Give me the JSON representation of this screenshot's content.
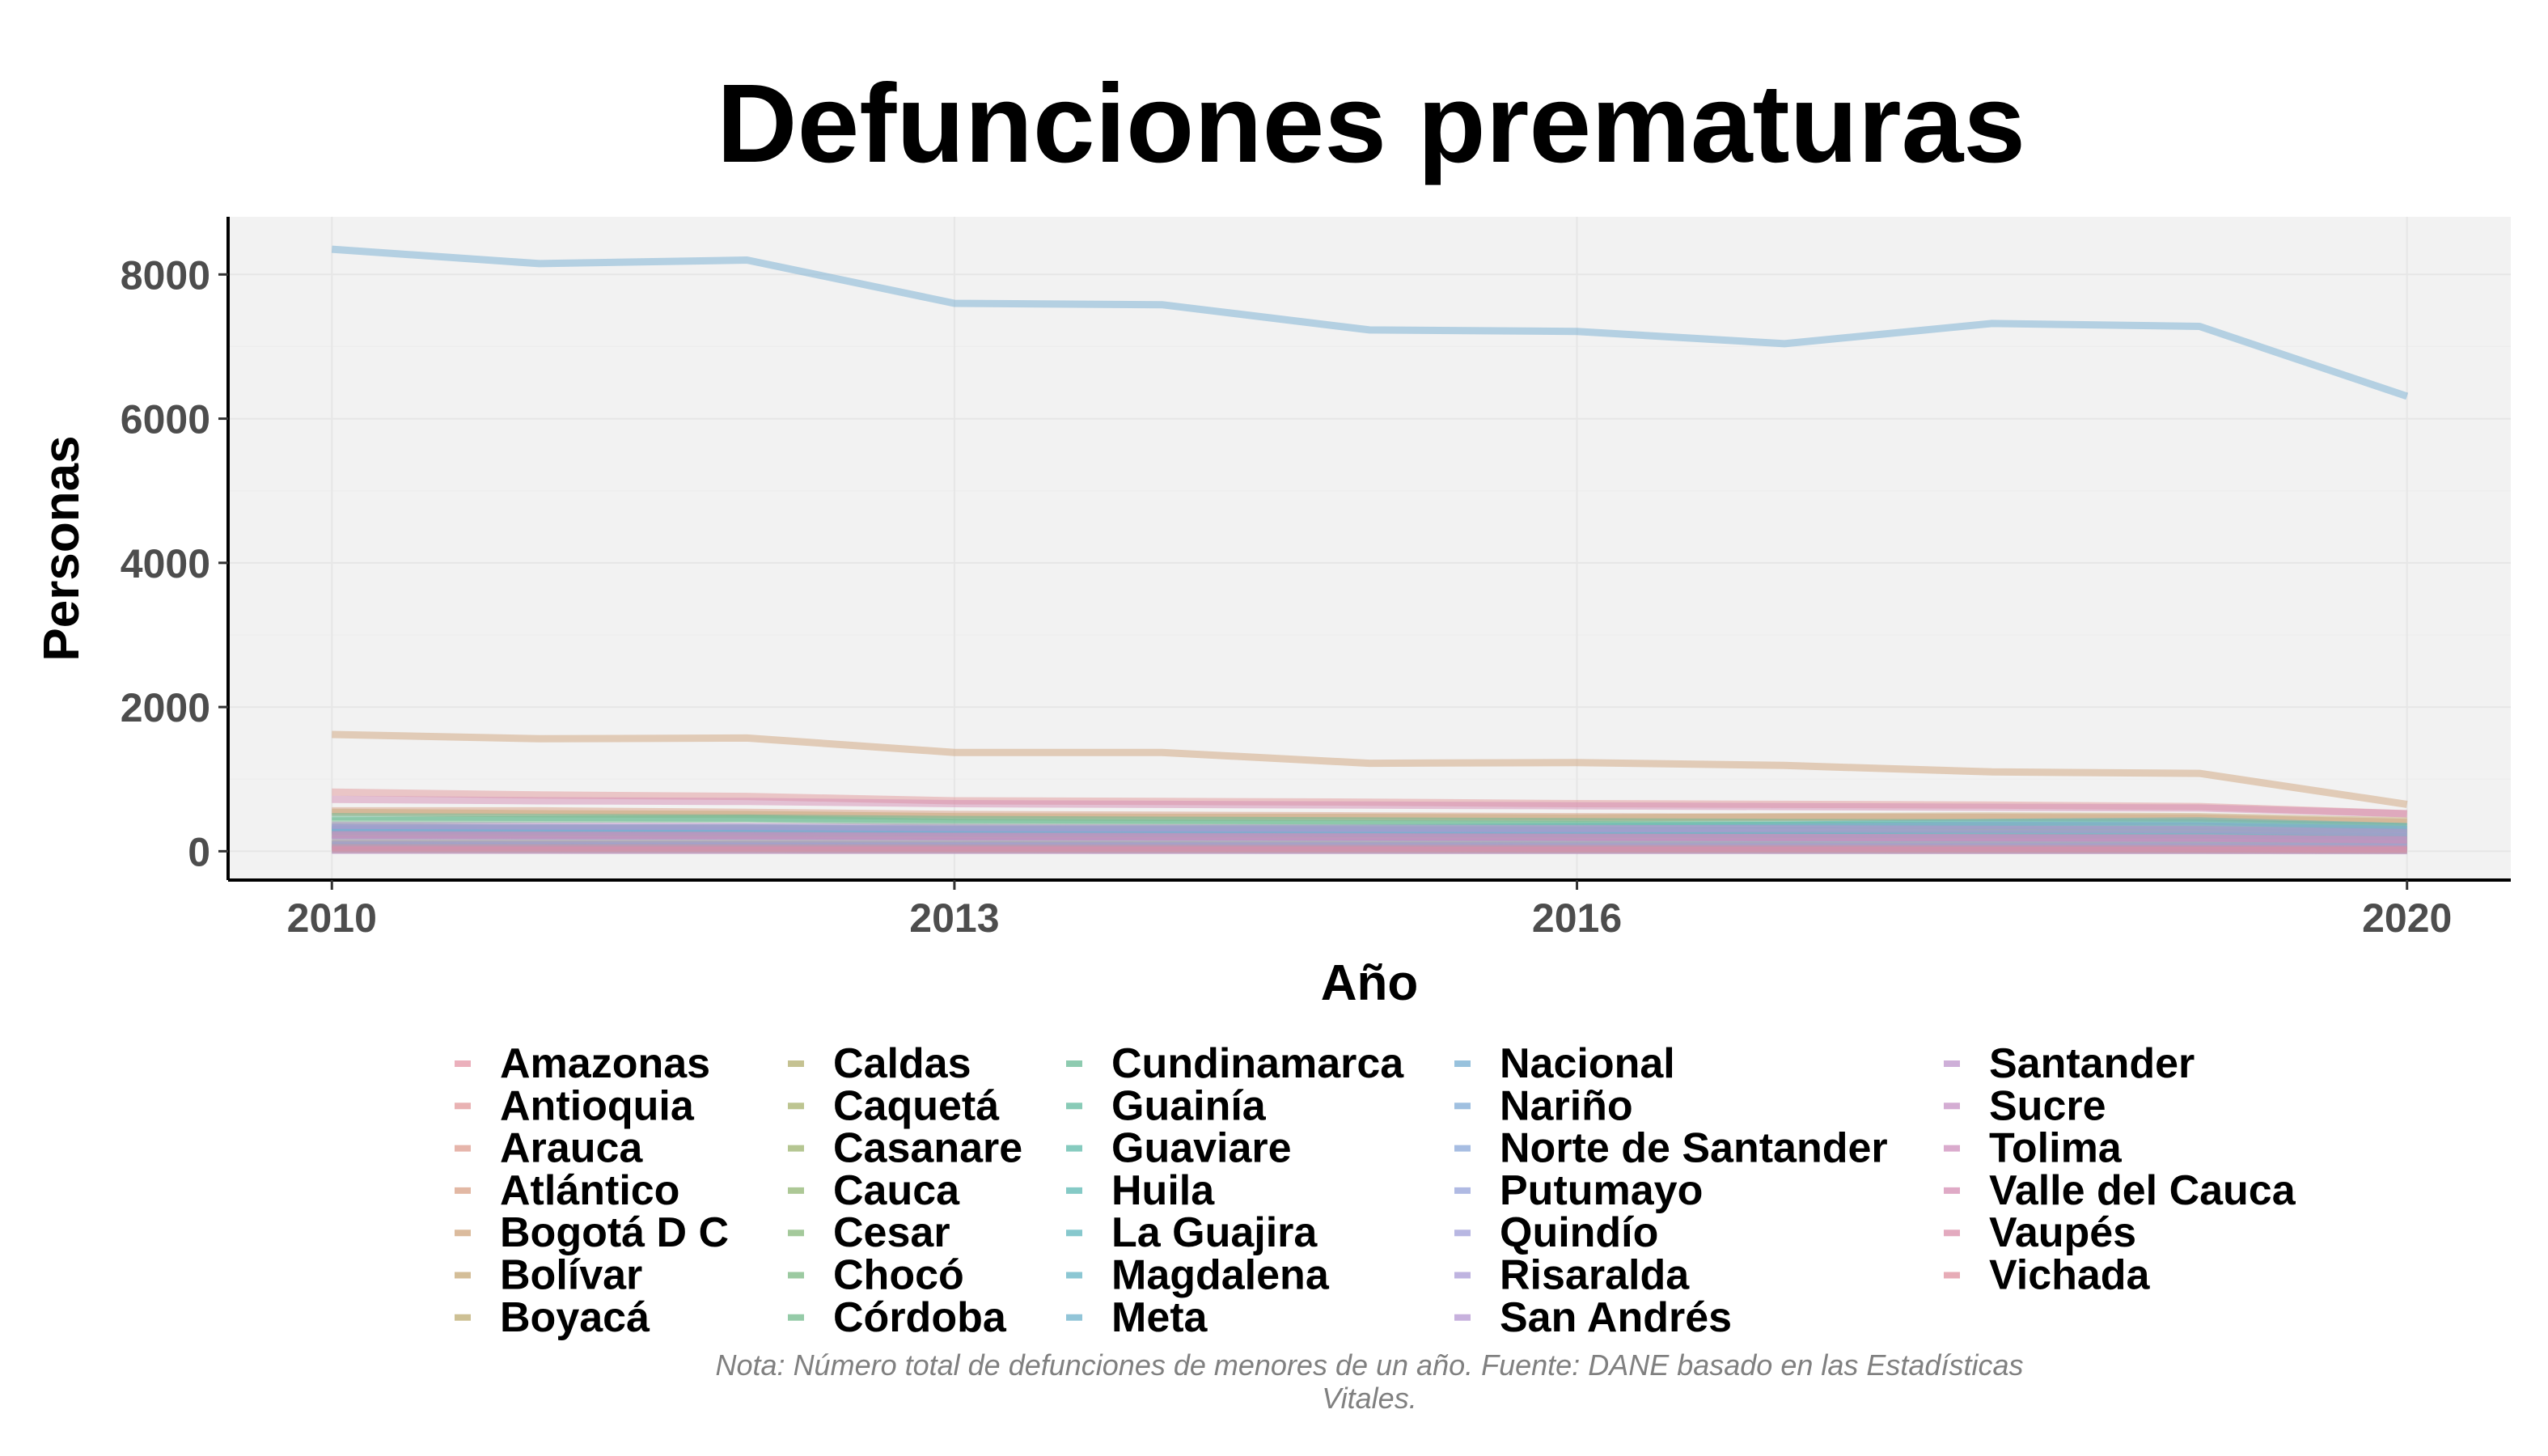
{
  "chart_data": {
    "type": "line",
    "title": "Defunciones prematuras",
    "xlabel": "Año",
    "ylabel": "Personas",
    "caption_lines": [
      "Nota: Número total de defunciones de menores de un año. Fuente: DANE basado en las Estadísticas",
      "Vitales."
    ],
    "x": [
      2010,
      2011,
      2012,
      2013,
      2014,
      2015,
      2016,
      2017,
      2018,
      2019,
      2020
    ],
    "x_ticks": [
      2010,
      2013,
      2016,
      2020
    ],
    "x_tick_labels": [
      "2010",
      "2013",
      "2016",
      "2020"
    ],
    "y_ticks": [
      0,
      2000,
      4000,
      6000,
      8000
    ],
    "y_tick_labels": [
      "0",
      "2000",
      "4000",
      "6000",
      "8000"
    ],
    "xlim": [
      2009.5,
      2020.5
    ],
    "ylim": [
      -400,
      8800
    ],
    "grid": true,
    "panel_background": "#f2f2f2",
    "legend_position": "bottom",
    "line_opacity": 0.5,
    "series": [
      {
        "name": "Amazonas",
        "color": "#e495a5",
        "values": [
          60,
          55,
          58,
          50,
          52,
          48,
          50,
          45,
          44,
          42,
          35
        ]
      },
      {
        "name": "Antioquia",
        "color": "#e1989a",
        "values": [
          820,
          780,
          760,
          700,
          690,
          680,
          660,
          650,
          640,
          620,
          520
        ]
      },
      {
        "name": "Arauca",
        "color": "#dd9c8f",
        "values": [
          70,
          68,
          66,
          60,
          58,
          56,
          54,
          55,
          56,
          52,
          45
        ]
      },
      {
        "name": "Atlántico",
        "color": "#d8a085",
        "values": [
          560,
          560,
          540,
          510,
          500,
          490,
          480,
          470,
          470,
          460,
          400
        ]
      },
      {
        "name": "Bogotá D C",
        "color": "#cfa47c",
        "values": [
          1620,
          1560,
          1570,
          1370,
          1370,
          1220,
          1230,
          1190,
          1100,
          1080,
          650
        ]
      },
      {
        "name": "Bolívar",
        "color": "#c6a875",
        "values": [
          540,
          520,
          510,
          480,
          470,
          470,
          460,
          480,
          490,
          480,
          420
        ]
      },
      {
        "name": "Boyacá",
        "color": "#bcab70",
        "values": [
          250,
          240,
          235,
          220,
          210,
          205,
          200,
          195,
          190,
          185,
          160
        ]
      },
      {
        "name": "Caldas",
        "color": "#b2ae6d",
        "values": [
          150,
          145,
          140,
          130,
          125,
          120,
          118,
          115,
          112,
          110,
          95
        ]
      },
      {
        "name": "Caquetá",
        "color": "#a7b16c",
        "values": [
          90,
          88,
          86,
          80,
          78,
          76,
          74,
          72,
          70,
          68,
          60
        ]
      },
      {
        "name": "Casanare",
        "color": "#9cb36e",
        "values": [
          100,
          98,
          95,
          90,
          88,
          86,
          84,
          82,
          80,
          78,
          70
        ]
      },
      {
        "name": "Cauca",
        "color": "#91b573",
        "values": [
          330,
          320,
          315,
          300,
          295,
          290,
          285,
          280,
          275,
          270,
          240
        ]
      },
      {
        "name": "Cesar",
        "color": "#86b77a",
        "values": [
          300,
          295,
          290,
          285,
          280,
          280,
          275,
          290,
          300,
          295,
          260
        ]
      },
      {
        "name": "Chocó",
        "color": "#7bb882",
        "values": [
          240,
          230,
          225,
          215,
          210,
          205,
          200,
          195,
          190,
          185,
          160
        ]
      },
      {
        "name": "Córdoba",
        "color": "#71b98b",
        "values": [
          420,
          440,
          450,
          400,
          390,
          380,
          370,
          360,
          355,
          350,
          300
        ]
      },
      {
        "name": "Cundinamarca",
        "color": "#68b995",
        "values": [
          480,
          470,
          460,
          440,
          430,
          420,
          410,
          400,
          395,
          390,
          340
        ]
      },
      {
        "name": "Guainía",
        "color": "#61b99f",
        "values": [
          25,
          24,
          23,
          22,
          21,
          20,
          20,
          19,
          19,
          18,
          15
        ]
      },
      {
        "name": "Guaviare",
        "color": "#5db9a9",
        "values": [
          40,
          38,
          37,
          35,
          34,
          33,
          32,
          31,
          30,
          30,
          25
        ]
      },
      {
        "name": "Huila",
        "color": "#5cb8b3",
        "values": [
          280,
          270,
          265,
          255,
          250,
          245,
          240,
          235,
          230,
          225,
          200
        ]
      },
      {
        "name": "La Guajira",
        "color": "#5fb6bc",
        "values": [
          310,
          320,
          330,
          300,
          310,
          320,
          340,
          360,
          400,
          420,
          340
        ]
      },
      {
        "name": "Magdalena",
        "color": "#65b4c4",
        "values": [
          330,
          320,
          315,
          300,
          295,
          290,
          285,
          290,
          300,
          295,
          260
        ]
      },
      {
        "name": "Meta",
        "color": "#6db1cb",
        "values": [
          220,
          215,
          210,
          200,
          195,
          190,
          185,
          180,
          178,
          175,
          150
        ]
      },
      {
        "name": "Nacional",
        "color": "#76aed1",
        "values": [
          8350,
          8150,
          8200,
          7600,
          7580,
          7230,
          7210,
          7040,
          7320,
          7280,
          6310
        ]
      },
      {
        "name": "Nariño",
        "color": "#80abd5",
        "values": [
          300,
          290,
          285,
          270,
          265,
          260,
          255,
          250,
          245,
          240,
          210
        ]
      },
      {
        "name": "Norte de Santander",
        "color": "#8aa7d8",
        "values": [
          330,
          325,
          320,
          310,
          305,
          300,
          300,
          330,
          360,
          350,
          300
        ]
      },
      {
        "name": "Putumayo",
        "color": "#95a3d9",
        "values": [
          70,
          68,
          66,
          62,
          60,
          58,
          56,
          54,
          53,
          52,
          45
        ]
      },
      {
        "name": "Quindío",
        "color": "#a09fd8",
        "values": [
          90,
          88,
          86,
          82,
          80,
          78,
          76,
          74,
          72,
          70,
          60
        ]
      },
      {
        "name": "Risaralda",
        "color": "#aa9bd5",
        "values": [
          160,
          155,
          150,
          145,
          140,
          135,
          132,
          130,
          128,
          125,
          105
        ]
      },
      {
        "name": "San Andrés",
        "color": "#b497d1",
        "values": [
          12,
          12,
          11,
          11,
          10,
          10,
          10,
          9,
          9,
          9,
          8
        ]
      },
      {
        "name": "Santander",
        "color": "#bd94cb",
        "values": [
          360,
          350,
          345,
          330,
          325,
          320,
          315,
          310,
          305,
          300,
          260
        ]
      },
      {
        "name": "Sucre",
        "color": "#c691c4",
        "values": [
          220,
          215,
          210,
          200,
          198,
          195,
          192,
          190,
          188,
          185,
          160
        ]
      },
      {
        "name": "Tolima",
        "color": "#ce8fbc",
        "values": [
          230,
          225,
          220,
          210,
          205,
          200,
          195,
          190,
          185,
          180,
          155
        ]
      },
      {
        "name": "Valle del Cauca",
        "color": "#d48eb3",
        "values": [
          720,
          700,
          690,
          660,
          650,
          640,
          630,
          620,
          610,
          600,
          520
        ]
      },
      {
        "name": "Vaupés",
        "color": "#da8eaa",
        "values": [
          20,
          19,
          19,
          18,
          17,
          17,
          16,
          16,
          15,
          15,
          12
        ]
      },
      {
        "name": "Vichada",
        "color": "#df909f",
        "values": [
          45,
          44,
          43,
          41,
          40,
          39,
          38,
          37,
          36,
          35,
          30
        ]
      }
    ]
  }
}
